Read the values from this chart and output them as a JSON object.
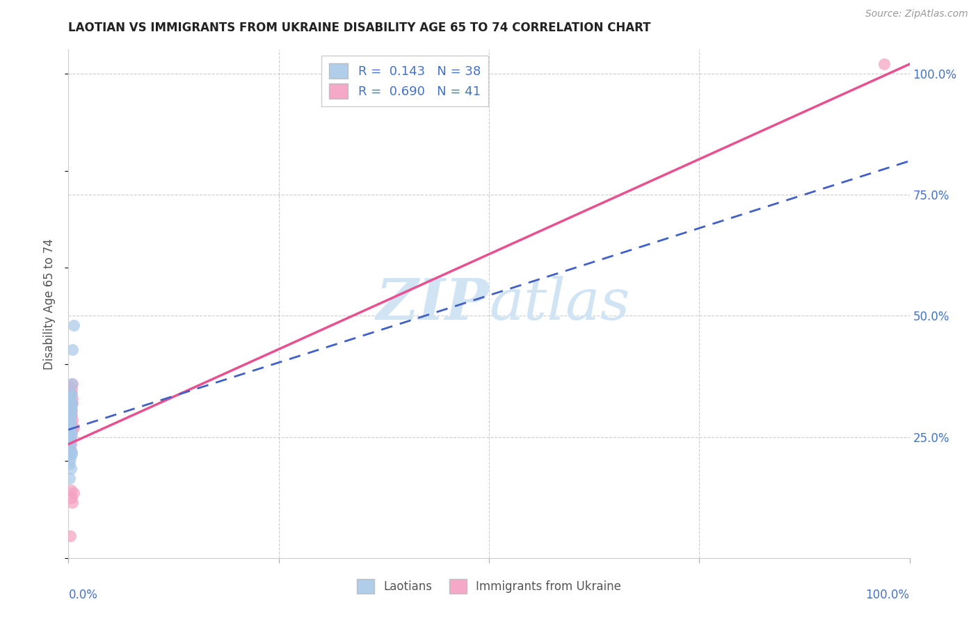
{
  "title": "LAOTIAN VS IMMIGRANTS FROM UKRAINE DISABILITY AGE 65 TO 74 CORRELATION CHART",
  "source": "Source: ZipAtlas.com",
  "ylabel": "Disability Age 65 to 74",
  "xlim": [
    0.0,
    1.0
  ],
  "ylim": [
    0.0,
    1.05
  ],
  "laotian_R": 0.143,
  "laotian_N": 38,
  "ukraine_R": 0.69,
  "ukraine_N": 41,
  "laotian_color": "#a8c8e8",
  "ukraine_color": "#f4a0c0",
  "laotian_line_color": "#4060c8",
  "ukraine_line_color": "#e85090",
  "watermark_color": "#d0e4f4",
  "laotian_x": [
    0.001,
    0.002,
    0.003,
    0.002,
    0.004,
    0.003,
    0.001,
    0.002,
    0.002,
    0.001,
    0.003,
    0.002,
    0.004,
    0.003,
    0.002,
    0.001,
    0.002,
    0.003,
    0.002,
    0.003,
    0.001,
    0.002,
    0.003,
    0.002,
    0.004,
    0.003,
    0.002,
    0.001,
    0.003,
    0.005,
    0.006,
    0.002,
    0.001,
    0.003,
    0.004,
    0.002,
    0.001,
    0.004
  ],
  "laotian_y": [
    0.285,
    0.27,
    0.26,
    0.295,
    0.32,
    0.31,
    0.33,
    0.3,
    0.275,
    0.265,
    0.34,
    0.33,
    0.36,
    0.335,
    0.275,
    0.29,
    0.28,
    0.3,
    0.325,
    0.31,
    0.255,
    0.265,
    0.245,
    0.205,
    0.22,
    0.215,
    0.235,
    0.195,
    0.185,
    0.43,
    0.48,
    0.295,
    0.235,
    0.255,
    0.215,
    0.275,
    0.165,
    0.315
  ],
  "ukraine_x": [
    0.001,
    0.003,
    0.001,
    0.004,
    0.002,
    0.005,
    0.001,
    0.003,
    0.002,
    0.001,
    0.005,
    0.004,
    0.003,
    0.001,
    0.002,
    0.004,
    0.001,
    0.003,
    0.005,
    0.002,
    0.001,
    0.004,
    0.005,
    0.003,
    0.001,
    0.002,
    0.006,
    0.004,
    0.003,
    0.004,
    0.002,
    0.001,
    0.005,
    0.003,
    0.005,
    0.004,
    0.006,
    0.002,
    0.001,
    0.003,
    0.97
  ],
  "ukraine_y": [
    0.255,
    0.265,
    0.355,
    0.35,
    0.3,
    0.33,
    0.27,
    0.275,
    0.26,
    0.29,
    0.36,
    0.34,
    0.305,
    0.255,
    0.225,
    0.27,
    0.29,
    0.315,
    0.32,
    0.265,
    0.225,
    0.305,
    0.265,
    0.28,
    0.245,
    0.25,
    0.27,
    0.295,
    0.235,
    0.255,
    0.265,
    0.245,
    0.285,
    0.14,
    0.115,
    0.125,
    0.135,
    0.045,
    0.255,
    0.28,
    1.02
  ],
  "ukraine_line_x0": 0.0,
  "ukraine_line_y0": 0.235,
  "ukraine_line_x1": 1.0,
  "ukraine_line_y1": 1.02,
  "laotian_line_x0": 0.0,
  "laotian_line_y0": 0.265,
  "laotian_line_x1": 1.0,
  "laotian_line_y1": 0.82
}
